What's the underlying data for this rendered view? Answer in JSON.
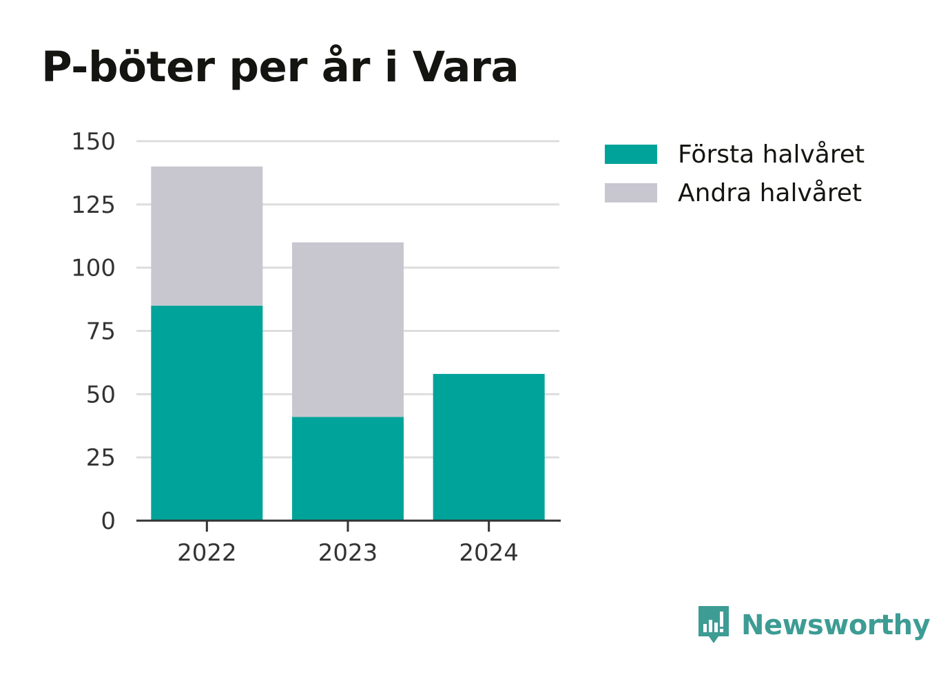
{
  "title": "P-böter per år i Vara",
  "legend": {
    "items": [
      {
        "label": "Första halvåret",
        "color": "#00a39a"
      },
      {
        "label": "Andra halvåret",
        "color": "#c8c7d0"
      }
    ]
  },
  "brand": {
    "name": "Newsworthy",
    "icon": "bar-chart-speech-bubble-icon",
    "color": "#3d9c94"
  },
  "chart_data": {
    "type": "bar",
    "stacked": true,
    "categories": [
      "2022",
      "2023",
      "2024"
    ],
    "series": [
      {
        "name": "Första halvåret",
        "color": "#00a39a",
        "values": [
          85,
          41,
          58
        ]
      },
      {
        "name": "Andra halvåret",
        "color": "#c8c7d0",
        "values": [
          55,
          69,
          0
        ]
      }
    ],
    "ylim": [
      0,
      150
    ],
    "yticks": [
      "0",
      "25",
      "50",
      "75",
      "100",
      "125",
      "150"
    ],
    "grid": true,
    "legend_position": "right"
  }
}
